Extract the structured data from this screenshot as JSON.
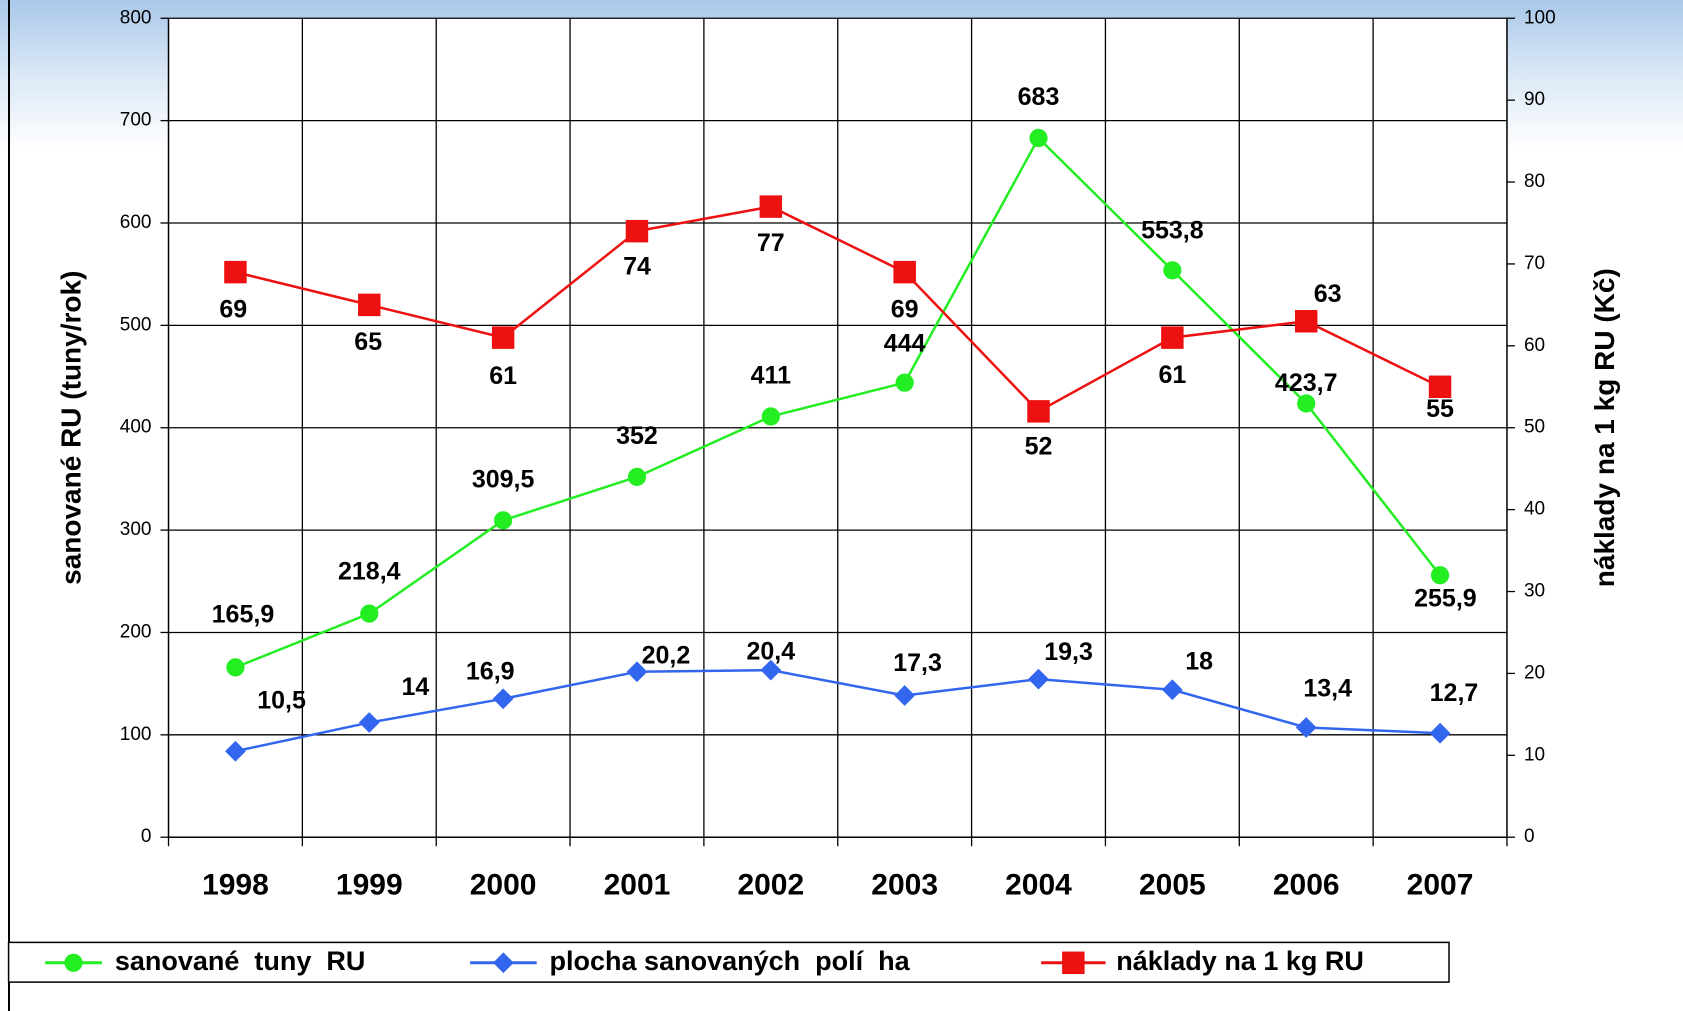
{
  "chart_data": {
    "type": "line",
    "ylabel": "sanované RU (tuny/rok)",
    "y2label": "náklady na 1 kg RU (Kč)",
    "categories": [
      "1998",
      "1999",
      "2000",
      "2001",
      "2002",
      "2003",
      "2004",
      "2005",
      "2006",
      "2007"
    ],
    "series": [
      {
        "name": "sanované  tuny  RU",
        "color": "#22ee22",
        "marker": "circle",
        "axis": "y",
        "values": [
          165.9,
          218.4,
          309.5,
          352,
          411,
          444,
          683,
          553.8,
          423.7,
          255.9
        ],
        "value_labels": [
          "165,9",
          "218,4",
          "309,5",
          "352",
          "411",
          "444",
          "683",
          "553,8",
          "423,7",
          "255,9"
        ]
      },
      {
        "name": "plocha sanovaných  polí  ha",
        "color": "#3366ee",
        "marker": "diamond",
        "axis": "y2",
        "values": [
          10.5,
          14,
          16.9,
          20.2,
          20.4,
          17.3,
          19.3,
          18,
          13.4,
          12.7
        ],
        "value_labels": [
          "10,5",
          "14",
          "16,9",
          "20,2",
          "20,4",
          "17,3",
          "19,3",
          "18",
          "13,4",
          "12,7"
        ]
      },
      {
        "name": "náklady na 1 kg RU",
        "color": "#ee1111",
        "marker": "square",
        "axis": "y2",
        "values": [
          69,
          65,
          61,
          74,
          77,
          69,
          52,
          61,
          63,
          55
        ],
        "value_labels": [
          "69",
          "65",
          "61",
          "74",
          "77",
          "69",
          "52",
          "61",
          "63",
          "55"
        ]
      }
    ],
    "ylim": [
      0,
      800
    ],
    "yticks": [
      0,
      100,
      200,
      300,
      400,
      500,
      600,
      700,
      800
    ],
    "y2lim": [
      0,
      100
    ],
    "y2ticks": [
      0,
      10,
      20,
      30,
      40,
      50,
      60,
      70,
      80,
      90,
      100
    ],
    "grid": true,
    "legend": "bottom"
  }
}
